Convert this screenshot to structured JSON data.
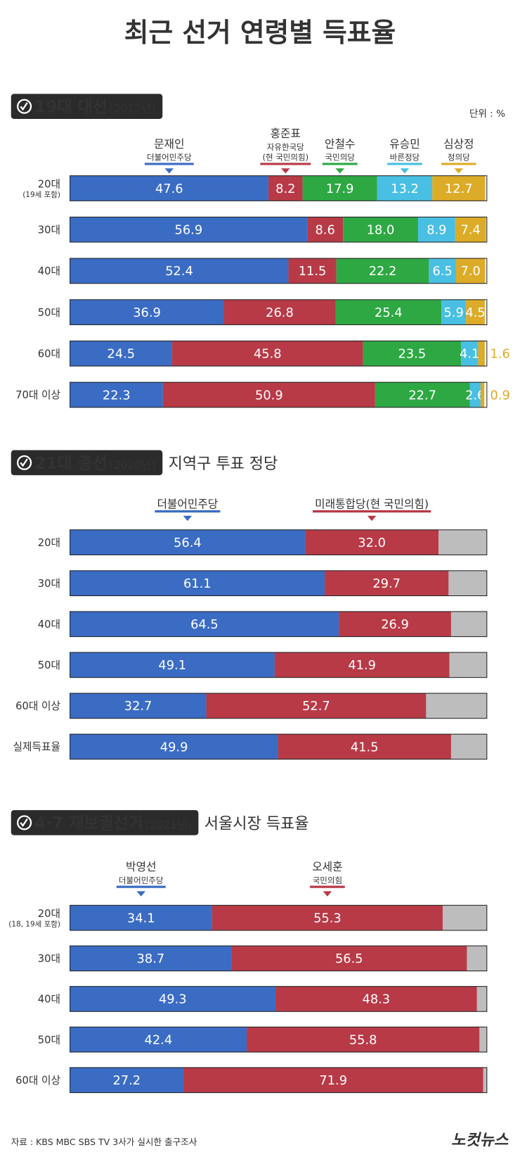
{
  "title": "최근 선거 연령별 득표율",
  "unit": "단위 : %",
  "chart_data": [
    {
      "type": "bar",
      "orientation": "horizontal",
      "stacked": true,
      "heading": "19대 대선",
      "heading_year": "(2017년)",
      "categories": [
        "20대",
        "30대",
        "40대",
        "50대",
        "60대",
        "70대 이상"
      ],
      "category_notes": [
        "(19세 포함)",
        null,
        null,
        null,
        null,
        null
      ],
      "xlim": [
        0,
        100
      ],
      "series": [
        {
          "name": "문재인",
          "party": "더불어민주당",
          "color": "#3a6cc4",
          "values": [
            47.6,
            56.9,
            52.4,
            36.9,
            24.5,
            22.3
          ],
          "value_labels": [
            "47.6",
            "56.9",
            "52.4",
            "36.9",
            "24.5",
            "22.3"
          ]
        },
        {
          "name": "홍준표",
          "party": "자유한국당",
          "party_note": "(현 국민의힘)",
          "color": "#b83a47",
          "values": [
            8.2,
            8.6,
            11.5,
            26.8,
            45.8,
            50.9
          ],
          "value_labels": [
            "8.2",
            "8.6",
            "11.5",
            "26.8",
            "45.8",
            "50.9"
          ]
        },
        {
          "name": "안철수",
          "party": "국민의당",
          "color": "#2ea843",
          "values": [
            17.9,
            18.0,
            22.2,
            25.4,
            23.5,
            22.7
          ],
          "value_labels": [
            "17.9",
            "18.0",
            "22.2",
            "25.4",
            "23.5",
            "22.7"
          ]
        },
        {
          "name": "유승민",
          "party": "바른정당",
          "color": "#48bfe3",
          "values": [
            13.2,
            8.9,
            6.5,
            5.9,
            4.1,
            2.6
          ],
          "value_labels": [
            "13.2",
            "8.9",
            "6.5",
            "5.9",
            "4.1",
            "2.6"
          ]
        },
        {
          "name": "심상정",
          "party": "정의당",
          "color": "#dcab27",
          "values": [
            12.7,
            7.4,
            7.0,
            4.5,
            1.6,
            0.9
          ],
          "value_labels": [
            "12.7",
            "7.4",
            "7.0",
            "4.5",
            "1.6",
            "0.9"
          ]
        }
      ]
    },
    {
      "type": "bar",
      "orientation": "horizontal",
      "stacked": true,
      "heading": "21대 총선",
      "heading_year": "(2020년)",
      "subtitle": "지역구 투표 정당",
      "categories": [
        "20대",
        "30대",
        "40대",
        "50대",
        "60대 이상",
        "실제득표율"
      ],
      "xlim": [
        0,
        100
      ],
      "track_color": "#bdbdbd",
      "series": [
        {
          "name": "더불어민주당",
          "color": "#3a6cc4",
          "values": [
            56.4,
            61.1,
            64.5,
            49.1,
            32.7,
            49.9
          ],
          "value_labels": [
            "56.4",
            "61.1",
            "64.5",
            "49.1",
            "32.7",
            "49.9"
          ]
        },
        {
          "name": "미래통합당(현 국민의힘)",
          "color": "#b83a47",
          "values": [
            32.0,
            29.7,
            26.9,
            41.9,
            52.7,
            41.5
          ],
          "value_labels": [
            "32.0",
            "29.7",
            "26.9",
            "41.9",
            "52.7",
            "41.5"
          ]
        }
      ]
    },
    {
      "type": "bar",
      "orientation": "horizontal",
      "stacked": true,
      "heading": "4·7 재보궐선거",
      "heading_year": "(2021년)",
      "subtitle": "서울시장 득표율",
      "categories": [
        "20대",
        "30대",
        "40대",
        "50대",
        "60대 이상"
      ],
      "category_notes": [
        "(18, 19세 포함)",
        null,
        null,
        null,
        null
      ],
      "xlim": [
        0,
        100
      ],
      "track_color": "#bdbdbd",
      "series": [
        {
          "name": "박영선",
          "party": "더불어민주당",
          "color": "#3a6cc4",
          "values": [
            34.1,
            38.7,
            49.3,
            42.4,
            27.2
          ],
          "value_labels": [
            "34.1",
            "38.7",
            "49.3",
            "42.4",
            "27.2"
          ]
        },
        {
          "name": "오세훈",
          "party": "국민의힘",
          "color": "#b83a47",
          "values": [
            55.3,
            56.5,
            48.3,
            55.8,
            71.9
          ],
          "value_labels": [
            "55.3",
            "56.5",
            "48.3",
            "55.8",
            "71.9"
          ]
        }
      ]
    }
  ],
  "source": "자료 : KBS MBC SBS TV 3사가 실시한 출구조사",
  "logo": "노컷뉴스"
}
